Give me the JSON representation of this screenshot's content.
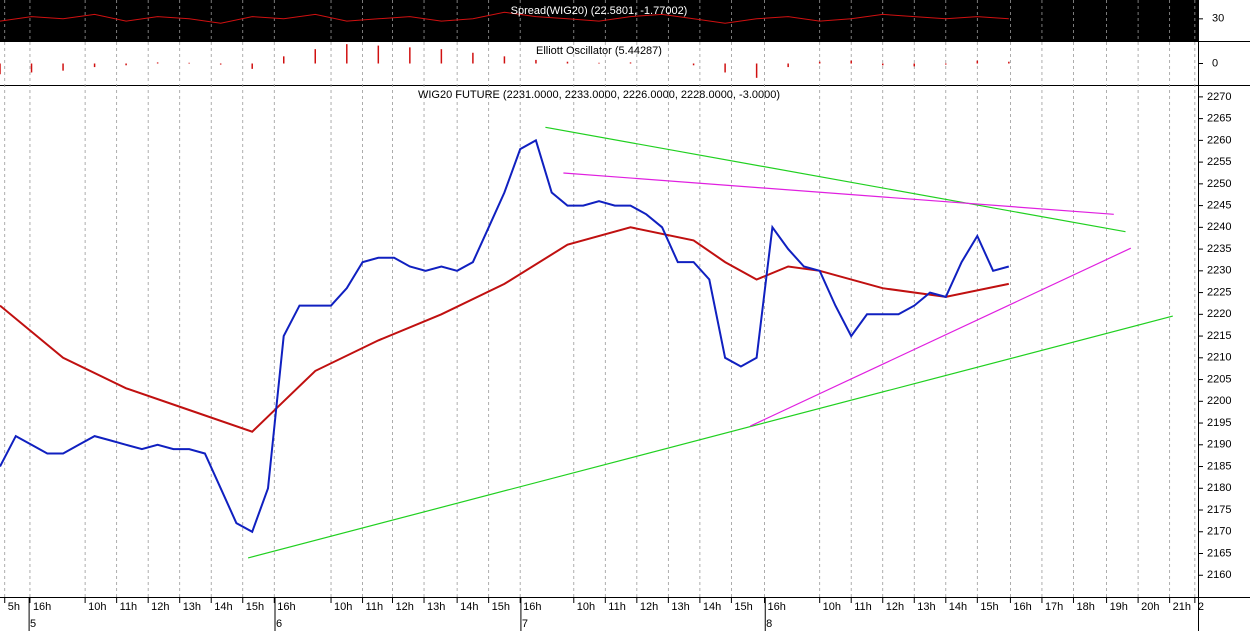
{
  "chart_data": [
    {
      "type": "line",
      "title": "Spread(WIG20) (22.5801, -1.77002)",
      "series": [
        {
          "color": "#d01010",
          "x": [
            0,
            1,
            2,
            3,
            4,
            5,
            6,
            7,
            8,
            9,
            10,
            11,
            12,
            13,
            14,
            15,
            16,
            17,
            18,
            19,
            20,
            21,
            22,
            23,
            24,
            25,
            26,
            27,
            28,
            29,
            30,
            31,
            32
          ],
          "values": [
            29,
            31,
            30,
            32,
            29,
            31,
            30,
            28,
            31,
            30,
            32,
            29,
            30,
            31,
            29,
            30,
            33,
            31,
            30,
            29,
            31,
            32,
            30,
            28,
            30,
            31,
            29,
            30,
            32,
            31,
            30,
            31,
            30
          ]
        }
      ],
      "xlim": [
        0,
        38
      ],
      "ylim": [
        20,
        38.5
      ],
      "yticks": [
        30
      ]
    },
    {
      "type": "bar",
      "title": "Elliott Oscillator (5.44287)",
      "color": "#d01010",
      "x": [
        0,
        1,
        2,
        3,
        4,
        5,
        6,
        7,
        8,
        9,
        10,
        11,
        12,
        13,
        14,
        15,
        16,
        17,
        18,
        19,
        20,
        21,
        22,
        23,
        24,
        25,
        26,
        27,
        28,
        29,
        30,
        31,
        32
      ],
      "values": [
        -3,
        -2.5,
        -2,
        -1,
        -0.5,
        0.3,
        0.2,
        -0.3,
        -1.5,
        2,
        4,
        5.4,
        5,
        4.5,
        4,
        3,
        2,
        1,
        0.5,
        0.2,
        0.3,
        0,
        -0.5,
        -2.5,
        -4,
        -1,
        0.5,
        0.8,
        -0.5,
        -0.8,
        -0.3,
        0.8,
        0.5
      ],
      "xlim": [
        0,
        38
      ],
      "ylim": [
        -6,
        6
      ],
      "yticks": [
        0
      ]
    },
    {
      "type": "line",
      "title": "WIG20 FUTURE (2231.0000, 2233.0000, 2226.0000, 2228.0000, -3.0000)",
      "series": [
        {
          "color": "#1020c0",
          "x": [
            0,
            0.5,
            1,
            1.5,
            2,
            2.5,
            3,
            3.5,
            4,
            4.5,
            5,
            5.5,
            6,
            6.5,
            7,
            7.5,
            8,
            8.5,
            9,
            9.5,
            10,
            10.5,
            11,
            11.5,
            12,
            12.5,
            13,
            13.5,
            14,
            14.5,
            15,
            15.5,
            16,
            16.5,
            17,
            17.5,
            18,
            18.5,
            19,
            19.5,
            20,
            20.5,
            21,
            21.5,
            22,
            22.5,
            23,
            23.5,
            24,
            24.5,
            25,
            25.5,
            26,
            26.5,
            27,
            27.5,
            28,
            28.5,
            29,
            29.5,
            30,
            30.5,
            31,
            31.5,
            32
          ],
          "values": [
            2185,
            2192,
            2190,
            2188,
            2188,
            2190,
            2192,
            2191,
            2190,
            2189,
            2190,
            2189,
            2189,
            2188,
            2180,
            2172,
            2170,
            2180,
            2215,
            2222,
            2222,
            2222,
            2226,
            2232,
            2233,
            2233,
            2231,
            2230,
            2231,
            2230,
            2232,
            2240,
            2248,
            2258,
            2260,
            2248,
            2245,
            2245,
            2246,
            2245,
            2245,
            2243,
            2240,
            2232,
            2232,
            2228,
            2210,
            2208,
            2210,
            2240,
            2235,
            2231,
            2230,
            2222,
            2215,
            2220,
            2220,
            2220,
            2222,
            2225,
            2224,
            2232,
            2238,
            2230,
            2231
          ]
        },
        {
          "color": "#c01010",
          "x": [
            0,
            2,
            4,
            6,
            8,
            9,
            10,
            12,
            14,
            16,
            18,
            20,
            22,
            23,
            24,
            25,
            26,
            28,
            30,
            32
          ],
          "values": [
            2222,
            2210,
            2203,
            2198,
            2193,
            2200,
            2207,
            2214,
            2220,
            2227,
            2236,
            2240,
            2237,
            2232,
            2228,
            2231,
            2230,
            2226,
            2224,
            2227
          ]
        }
      ],
      "trendlines": [
        {
          "color": "#20d020",
          "x": [
            17.3,
            35.7
          ],
          "values": [
            2263,
            2239
          ]
        },
        {
          "color": "#20d020",
          "x": [
            7.87,
            37.2
          ],
          "values": [
            2164,
            2219.6
          ]
        },
        {
          "color": "#e020e0",
          "x": [
            17.87,
            35.33
          ],
          "values": [
            2252.5,
            2243
          ]
        },
        {
          "color": "#e020e0",
          "x": [
            23.8,
            35.87
          ],
          "values": [
            2194.3,
            2235.2
          ]
        }
      ],
      "xlim": [
        0,
        38
      ],
      "ylim": [
        2155,
        2272.5
      ],
      "yticks": [
        2160,
        2165,
        2170,
        2175,
        2180,
        2185,
        2190,
        2195,
        2200,
        2205,
        2210,
        2215,
        2220,
        2225,
        2230,
        2235,
        2240,
        2245,
        2250,
        2255,
        2260,
        2265,
        2270
      ],
      "xticks": [
        {
          "value": 0.15,
          "label": "5h"
        },
        {
          "value": 0.95,
          "label": "16h"
        },
        {
          "value": 2.7,
          "label": "10h"
        },
        {
          "value": 3.7,
          "label": "11h"
        },
        {
          "value": 4.7,
          "label": "12h"
        },
        {
          "value": 5.7,
          "label": "13h"
        },
        {
          "value": 6.7,
          "label": "14h"
        },
        {
          "value": 7.7,
          "label": "15h"
        },
        {
          "value": 8.7,
          "label": "16h"
        },
        {
          "value": 10.5,
          "label": "10h"
        },
        {
          "value": 11.5,
          "label": "11h"
        },
        {
          "value": 12.45,
          "label": "12h"
        },
        {
          "value": 13.45,
          "label": "13h"
        },
        {
          "value": 14.5,
          "label": "14h"
        },
        {
          "value": 15.5,
          "label": "15h"
        },
        {
          "value": 16.5,
          "label": "16h"
        },
        {
          "value": 18.2,
          "label": "10h"
        },
        {
          "value": 19.2,
          "label": "11h"
        },
        {
          "value": 20.2,
          "label": "12h"
        },
        {
          "value": 21.2,
          "label": "13h"
        },
        {
          "value": 22.2,
          "label": "14h"
        },
        {
          "value": 23.2,
          "label": "15h"
        },
        {
          "value": 24.25,
          "label": "16h"
        },
        {
          "value": 26,
          "label": "10h"
        },
        {
          "value": 27,
          "label": "11h"
        },
        {
          "value": 28,
          "label": "12h"
        },
        {
          "value": 29,
          "label": "13h"
        },
        {
          "value": 30,
          "label": "14h"
        },
        {
          "value": 31,
          "label": "15h"
        },
        {
          "value": 32.05,
          "label": "16h"
        },
        {
          "value": 33.05,
          "label": "17h"
        },
        {
          "value": 34.05,
          "label": "18h"
        },
        {
          "value": 35.1,
          "label": "19h"
        },
        {
          "value": 36.1,
          "label": "20h"
        },
        {
          "value": 37.1,
          "label": "21h"
        },
        {
          "value": 37.9,
          "label": "2"
        }
      ],
      "day_ticks": [
        {
          "value": 1.05,
          "label": "5"
        },
        {
          "value": 8.85,
          "label": "6"
        },
        {
          "value": 16.65,
          "label": "7"
        },
        {
          "value": 24.4,
          "label": "8"
        }
      ],
      "grid": true
    }
  ]
}
